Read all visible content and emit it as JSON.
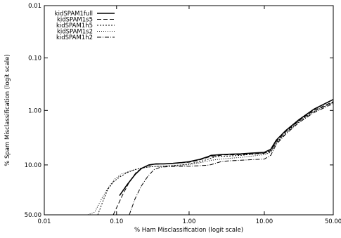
{
  "chart_data": {
    "type": "line",
    "title": "",
    "xlabel": "% Ham Misclassification (logit scale)",
    "ylabel": "% Spam Misclassification (logit scale)",
    "x_scale": "logit",
    "y_scale": "logit",
    "y_inverted": true,
    "xlim": [
      0.01,
      50.0
    ],
    "ylim": [
      0.01,
      50.0
    ],
    "x_ticks": [
      0.01,
      0.1,
      1.0,
      10.0,
      50.0
    ],
    "x_tick_labels": [
      "0.01",
      "0.10",
      "1.00",
      "10.00",
      "50.00"
    ],
    "y_ticks": [
      0.01,
      0.1,
      1.0,
      10.0,
      50.0
    ],
    "y_tick_labels": [
      "0.01",
      "0.10",
      "1.00",
      "10.00",
      "50.00"
    ],
    "grid": false,
    "legend_position": "top-left",
    "series": [
      {
        "name": "kidSPAM1full",
        "dash": "solid",
        "x": [
          0.11,
          0.14,
          0.18,
          0.22,
          0.28,
          0.35,
          0.45,
          0.6,
          0.8,
          1.0,
          1.4,
          1.8,
          2.0,
          2.3,
          2.6,
          3.5,
          5.0,
          7.0,
          10.0,
          12.0,
          14.0,
          18.0,
          25.0,
          35.0,
          50.0
        ],
        "y": [
          30.0,
          21.0,
          14.5,
          11.5,
          10.0,
          9.6,
          9.6,
          9.4,
          9.1,
          8.8,
          8.0,
          7.2,
          6.8,
          6.7,
          6.6,
          6.5,
          6.4,
          6.2,
          6.0,
          5.3,
          3.6,
          2.4,
          1.5,
          0.95,
          0.62
        ]
      },
      {
        "name": "kidSPAM1s5",
        "dash": "6,3",
        "x": [
          0.09,
          0.12,
          0.15,
          0.19,
          0.25,
          0.32,
          0.45,
          0.6,
          0.8,
          1.0,
          1.4,
          1.8,
          2.0,
          2.2,
          2.4,
          3.0,
          5.0,
          7.0,
          10.0,
          12.0,
          14.0,
          18.0,
          25.0,
          35.0,
          50.0
        ],
        "y": [
          50.0,
          30.0,
          19.0,
          13.0,
          10.6,
          9.8,
          9.6,
          9.4,
          9.2,
          9.0,
          8.2,
          7.4,
          7.1,
          7.0,
          6.9,
          6.7,
          6.6,
          6.4,
          6.2,
          5.6,
          3.8,
          2.5,
          1.55,
          1.0,
          0.68
        ]
      },
      {
        "name": "kidSPAM1h5",
        "dash": "2,2",
        "x": [
          0.055,
          0.065,
          0.075,
          0.09,
          0.11,
          0.14,
          0.18,
          0.25,
          0.35,
          0.5,
          0.8,
          1.0,
          1.4,
          1.8,
          2.0,
          2.3,
          2.6,
          3.5,
          5.0,
          7.0,
          10.0,
          12.0,
          14.0,
          18.0,
          25.0,
          35.0,
          50.0
        ],
        "y": [
          50.0,
          35.0,
          25.0,
          19.0,
          16.0,
          13.5,
          12.0,
          11.0,
          10.6,
          10.4,
          10.0,
          9.6,
          8.8,
          8.0,
          7.6,
          7.2,
          7.1,
          7.0,
          6.8,
          6.5,
          6.3,
          5.8,
          4.0,
          2.6,
          1.6,
          1.05,
          0.7
        ]
      },
      {
        "name": "kidSPAM1s2",
        "dash": "1,2",
        "x": [
          0.04,
          0.05,
          0.06,
          0.075,
          0.095,
          0.12,
          0.16,
          0.22,
          0.3,
          0.45,
          0.6,
          0.8,
          1.0,
          1.4,
          1.8,
          2.0,
          2.5,
          3.0,
          5.0,
          7.0,
          10.0,
          12.0,
          14.0,
          18.0,
          25.0,
          35.0,
          50.0
        ],
        "y": [
          50.0,
          47.0,
          35.0,
          24.0,
          17.0,
          14.0,
          12.5,
          11.3,
          10.7,
          10.5,
          10.3,
          10.1,
          9.9,
          9.2,
          8.6,
          8.3,
          8.0,
          7.8,
          7.4,
          7.0,
          6.6,
          6.0,
          4.1,
          2.7,
          1.65,
          1.05,
          0.7
        ]
      },
      {
        "name": "kidSPAM1h2",
        "dash": "6,2,1,2",
        "x": [
          0.15,
          0.18,
          0.22,
          0.27,
          0.33,
          0.4,
          0.45,
          0.6,
          0.8,
          1.0,
          1.4,
          1.8,
          2.0,
          2.4,
          2.8,
          3.5,
          5.0,
          7.0,
          10.0,
          12.0,
          14.0,
          18.0,
          25.0,
          35.0,
          50.0
        ],
        "y": [
          50.0,
          33.0,
          22.0,
          15.5,
          12.0,
          11.0,
          10.8,
          10.7,
          10.6,
          10.5,
          10.3,
          10.1,
          9.9,
          9.2,
          8.7,
          8.5,
          8.3,
          8.1,
          7.9,
          6.8,
          4.3,
          2.8,
          1.7,
          1.1,
          0.74
        ]
      }
    ]
  }
}
